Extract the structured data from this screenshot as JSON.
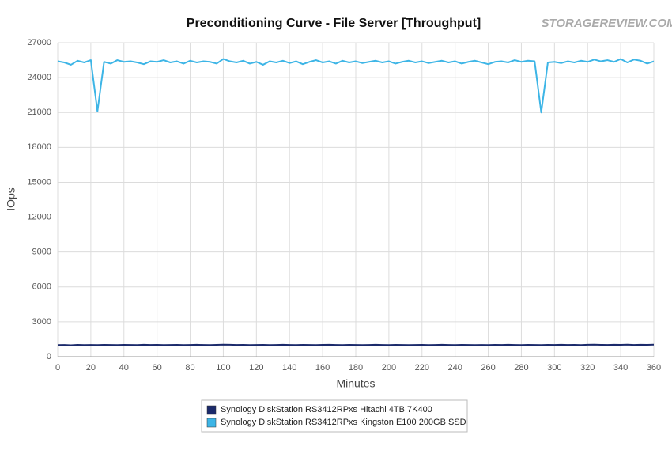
{
  "chart_data": {
    "type": "line",
    "title": "Preconditioning Curve - File Server [Throughput]",
    "watermark": "STORAGEREVIEW.COM",
    "xlabel": "Minutes",
    "ylabel": "IOps",
    "x": [
      0,
      4,
      8,
      12,
      16,
      20,
      24,
      28,
      32,
      36,
      40,
      44,
      48,
      52,
      56,
      60,
      64,
      68,
      72,
      76,
      80,
      84,
      88,
      92,
      96,
      100,
      104,
      108,
      112,
      116,
      120,
      124,
      128,
      132,
      136,
      140,
      144,
      148,
      152,
      156,
      160,
      164,
      168,
      172,
      176,
      180,
      184,
      188,
      192,
      196,
      200,
      204,
      208,
      212,
      216,
      220,
      224,
      228,
      232,
      236,
      240,
      244,
      248,
      252,
      256,
      260,
      264,
      268,
      272,
      276,
      280,
      284,
      288,
      292,
      296,
      300,
      304,
      308,
      312,
      316,
      320,
      324,
      328,
      332,
      336,
      340,
      344,
      348,
      352,
      356,
      360
    ],
    "series": [
      {
        "name": "Synology DiskStation RS3412RPxs Hitachi 4TB 7K400",
        "color": "#1b2a6b",
        "values": [
          1000,
          1010,
          990,
          1020,
          1000,
          1010,
          1000,
          1020,
          1010,
          1000,
          1020,
          1010,
          1000,
          1030,
          1010,
          1020,
          1000,
          1010,
          1020,
          1000,
          1010,
          1030,
          1010,
          1000,
          1020,
          1040,
          1030,
          1010,
          1020,
          1000,
          1010,
          1020,
          1000,
          1010,
          1030,
          1010,
          1000,
          1020,
          1010,
          1000,
          1020,
          1030,
          1010,
          1000,
          1020,
          1010,
          1000,
          1010,
          1030,
          1010,
          1000,
          1020,
          1010,
          1000,
          1010,
          1020,
          1000,
          1010,
          1030,
          1010,
          1000,
          1020,
          1010,
          1000,
          1010,
          1000,
          1020,
          1010,
          1030,
          1010,
          1000,
          1020,
          1010,
          1000,
          1020,
          1010,
          1030,
          1010,
          1020,
          1000,
          1030,
          1040,
          1020,
          1010,
          1030,
          1020,
          1040,
          1010,
          1030,
          1020,
          1040
        ]
      },
      {
        "name": "Synology DiskStation RS3412RPxs Kingston E100 200GB SSD",
        "color": "#3db5e6",
        "values": [
          25400,
          25300,
          25100,
          25450,
          25300,
          25500,
          21100,
          25350,
          25200,
          25500,
          25350,
          25400,
          25300,
          25150,
          25400,
          25350,
          25500,
          25300,
          25400,
          25200,
          25450,
          25300,
          25400,
          25350,
          25200,
          25600,
          25400,
          25300,
          25450,
          25200,
          25350,
          25100,
          25400,
          25300,
          25450,
          25250,
          25400,
          25150,
          25350,
          25500,
          25300,
          25400,
          25200,
          25450,
          25300,
          25400,
          25250,
          25350,
          25450,
          25300,
          25400,
          25200,
          25350,
          25450,
          25300,
          25400,
          25250,
          25350,
          25450,
          25300,
          25400,
          25200,
          25350,
          25450,
          25300,
          25150,
          25350,
          25400,
          25300,
          25500,
          25350,
          25450,
          25400,
          21000,
          25300,
          25350,
          25250,
          25400,
          25300,
          25450,
          25350,
          25550,
          25400,
          25500,
          25350,
          25600,
          25300,
          25550,
          25450,
          25200,
          25400
        ]
      }
    ],
    "xlim": [
      0,
      360
    ],
    "xticks": [
      0,
      20,
      40,
      60,
      80,
      100,
      120,
      140,
      160,
      180,
      200,
      220,
      240,
      260,
      280,
      300,
      320,
      340,
      360
    ],
    "ylim": [
      0,
      27000
    ],
    "yticks": [
      0,
      3000,
      6000,
      9000,
      12000,
      15000,
      18000,
      21000,
      24000,
      27000
    ],
    "grid": true
  }
}
